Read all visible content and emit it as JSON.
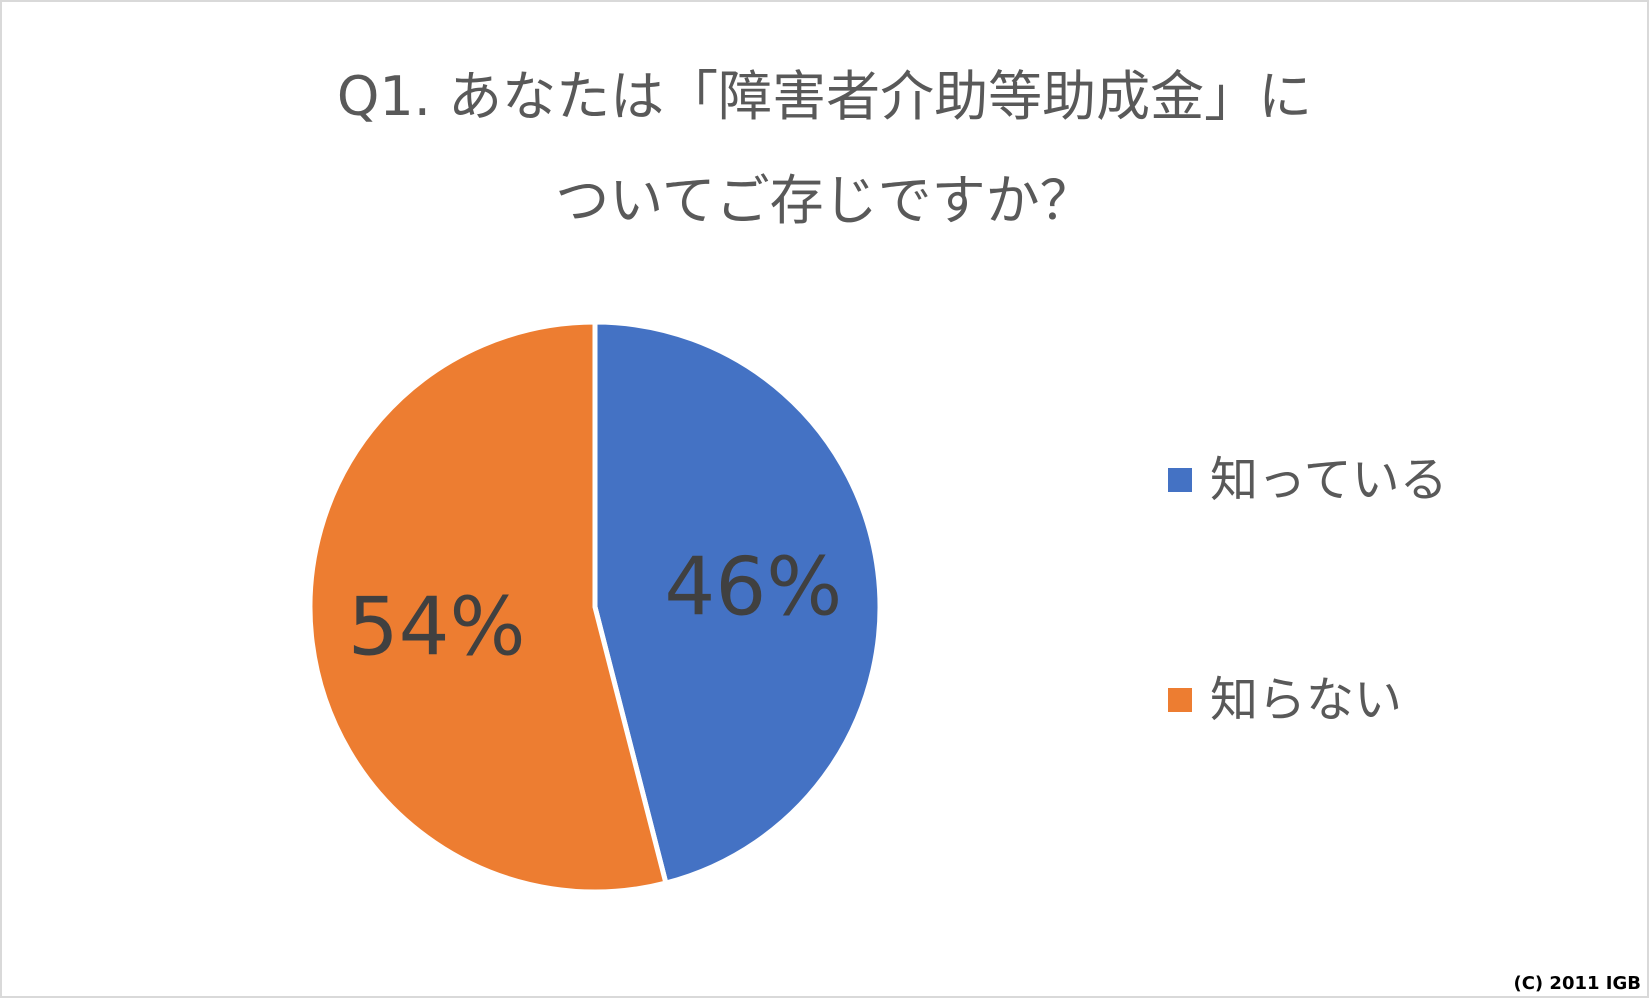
{
  "chart_data": {
    "type": "pie",
    "title": [
      "Q1. あなたは「障害者介助等助成金」に",
      "ついてご存じですか？"
    ],
    "categories": [
      "知っている",
      "知らない"
    ],
    "values": [
      46,
      54
    ],
    "data_labels": [
      "46%",
      "54%"
    ],
    "colors": [
      "#4472c4",
      "#ed7d31"
    ],
    "legend_position": "right"
  },
  "footer": {
    "copyright": "(C) 2011 IGB"
  },
  "colors": {
    "text": "#595959",
    "background": "#ffffff",
    "border": "#d9d9d9"
  }
}
